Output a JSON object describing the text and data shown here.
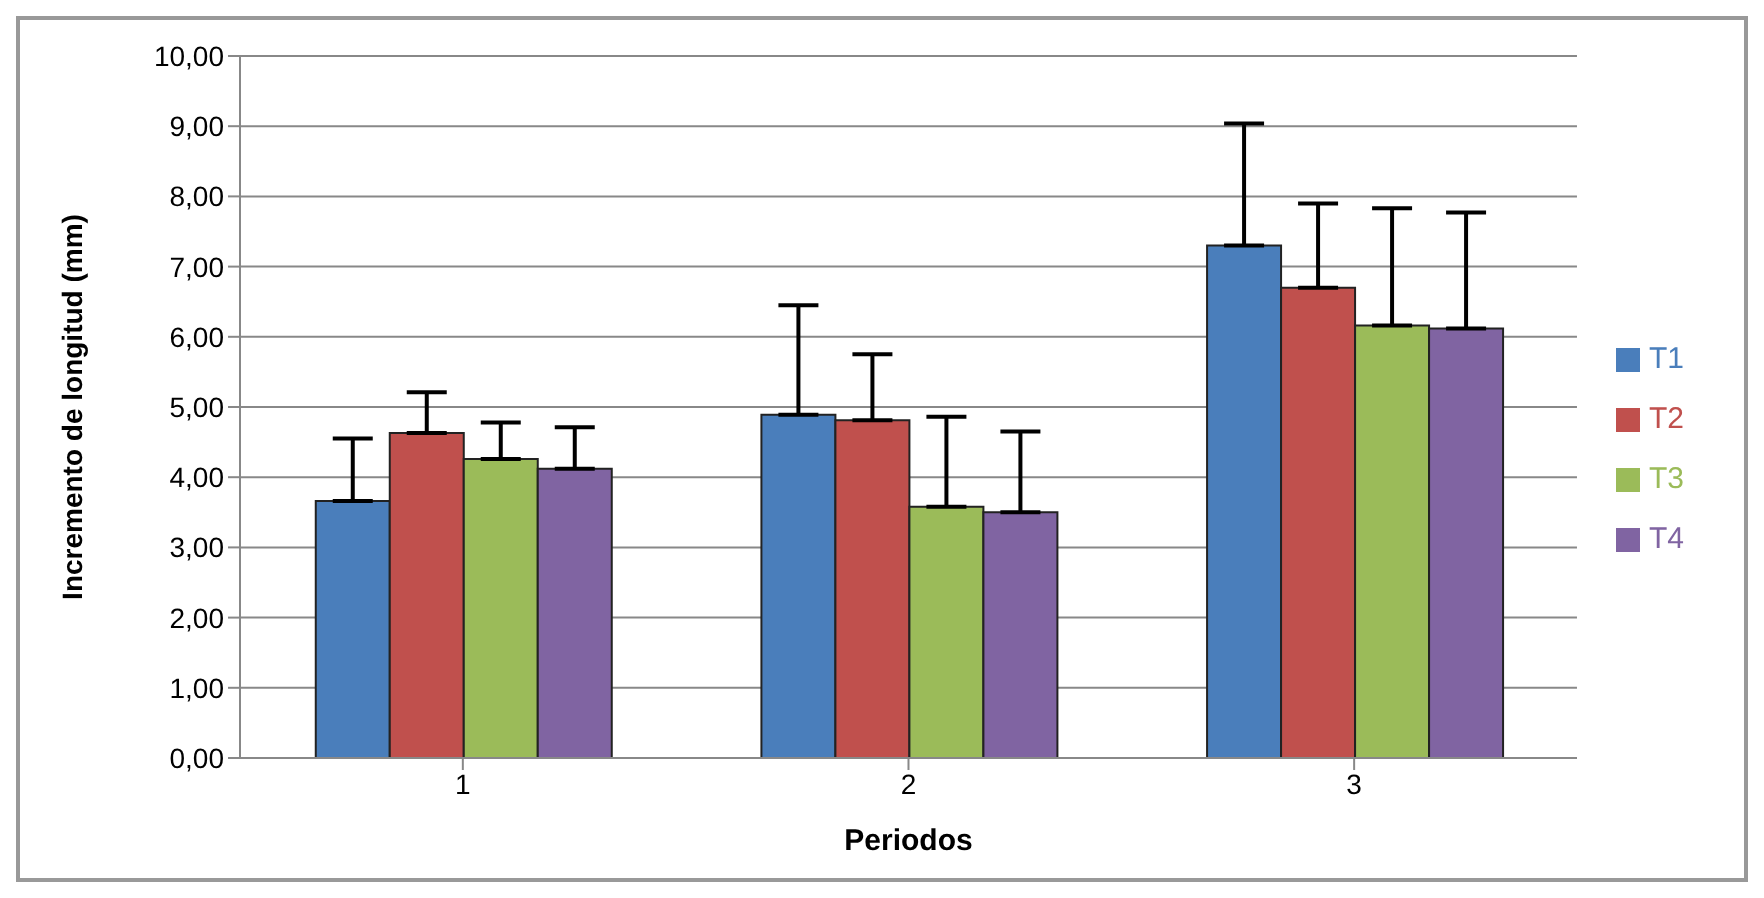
{
  "chart_data": {
    "type": "bar",
    "xlabel": "Periodos",
    "ylabel": "Incremento de longitud (mm)",
    "categories": [
      "1",
      "2",
      "3"
    ],
    "series": [
      {
        "name": "T1",
        "color": "#4a7ebb",
        "values": [
          3.66,
          4.89,
          7.3
        ],
        "errors": [
          [
            3.66,
            4.55
          ],
          [
            4.89,
            6.45
          ],
          [
            7.3,
            9.04
          ]
        ]
      },
      {
        "name": "T2",
        "color": "#c0504d",
        "values": [
          4.63,
          4.81,
          6.7
        ],
        "errors": [
          [
            4.63,
            5.21
          ],
          [
            4.81,
            5.75
          ],
          [
            6.7,
            7.9
          ]
        ]
      },
      {
        "name": "T3",
        "color": "#9bbb59",
        "values": [
          4.26,
          3.58,
          6.16
        ],
        "errors": [
          [
            4.26,
            4.78
          ],
          [
            3.58,
            4.86
          ],
          [
            6.16,
            7.83
          ]
        ]
      },
      {
        "name": "T4",
        "color": "#8064a2",
        "values": [
          4.12,
          3.5,
          6.12
        ],
        "errors": [
          [
            4.12,
            4.71
          ],
          [
            3.5,
            4.65
          ],
          [
            6.12,
            7.77
          ]
        ]
      }
    ],
    "ylim": [
      0,
      10
    ],
    "yticks": [
      {
        "value": 0,
        "label": "0,00"
      },
      {
        "value": 1,
        "label": "1,00"
      },
      {
        "value": 2,
        "label": "2,00"
      },
      {
        "value": 3,
        "label": "3,00"
      },
      {
        "value": 4,
        "label": "4,00"
      },
      {
        "value": 5,
        "label": "5,00"
      },
      {
        "value": 6,
        "label": "6,00"
      },
      {
        "value": 7,
        "label": "7,00"
      },
      {
        "value": 8,
        "label": "8,00"
      },
      {
        "value": 9,
        "label": "9,00"
      },
      {
        "value": 10,
        "label": "10,00"
      }
    ],
    "grid": "y",
    "legend": "right"
  }
}
